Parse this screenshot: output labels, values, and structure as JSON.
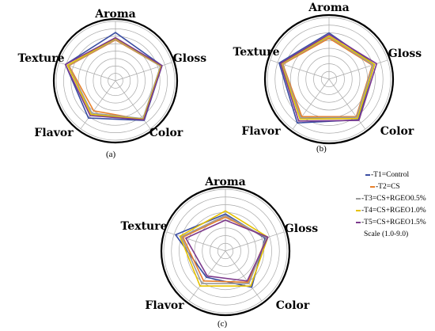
{
  "colors": {
    "T1": "#3b4ea3",
    "T2": "#e8802a",
    "T3": "#9a9a9a",
    "T4": "#e6c200",
    "T5": "#7d3a8c",
    "grid": "#a8a8a8",
    "outer": "#000000"
  },
  "legend": {
    "items": [
      {
        "key": "T1",
        "label": "T1=Control"
      },
      {
        "key": "T2",
        "label": "T2=CS"
      },
      {
        "key": "T3",
        "label": "T3=CS+RGEO0.5%"
      },
      {
        "key": "T4",
        "label": "T4=CS+RGEO1.0%"
      },
      {
        "key": "T5",
        "label": "T5=CS+RGEO1.5%"
      }
    ],
    "scale": "Scale (1.0-9.0)"
  },
  "chart_data": [
    {
      "type": "radar",
      "panel": "(a)",
      "axes": [
        "Aroma",
        "Gloss",
        "Color",
        "Flavor",
        "Texture"
      ],
      "range": [
        1,
        9
      ],
      "grid": true,
      "series": [
        {
          "key": "T1",
          "values": [
            7.5,
            7.6,
            7.6,
            7.2,
            8.1
          ]
        },
        {
          "key": "T2",
          "values": [
            6.5,
            7.4,
            7.5,
            6.0,
            7.6
          ]
        },
        {
          "key": "T3",
          "values": [
            6.6,
            7.4,
            7.3,
            6.4,
            7.7
          ]
        },
        {
          "key": "T4",
          "values": [
            6.7,
            7.5,
            7.4,
            6.6,
            7.8
          ]
        },
        {
          "key": "T5",
          "values": [
            6.8,
            7.6,
            7.5,
            6.8,
            8.1
          ]
        }
      ]
    },
    {
      "type": "radar",
      "panel": "(b)",
      "axes": [
        "Aroma",
        "Gloss",
        "Color",
        "Flavor",
        "Texture"
      ],
      "range": [
        1,
        9
      ],
      "grid": true,
      "series": [
        {
          "key": "T1",
          "values": [
            7.0,
            7.2,
            7.5,
            8.0,
            7.8
          ]
        },
        {
          "key": "T2",
          "values": [
            6.3,
            6.9,
            7.0,
            7.0,
            7.3
          ]
        },
        {
          "key": "T3",
          "values": [
            6.5,
            7.0,
            7.1,
            7.2,
            7.4
          ]
        },
        {
          "key": "T4",
          "values": [
            6.6,
            7.2,
            7.3,
            7.4,
            7.5
          ]
        },
        {
          "key": "T5",
          "values": [
            6.8,
            7.5,
            7.6,
            7.7,
            7.6
          ]
        }
      ]
    },
    {
      "type": "radar",
      "panel": "(c)",
      "axes": [
        "Aroma",
        "Gloss",
        "Color",
        "Flavor",
        "Texture"
      ],
      "range": [
        1,
        9
      ],
      "grid": true,
      "series": [
        {
          "key": "T1",
          "values": [
            5.8,
            6.4,
            6.8,
            5.2,
            7.8
          ]
        },
        {
          "key": "T2",
          "values": [
            5.4,
            6.6,
            6.0,
            5.8,
            6.8
          ]
        },
        {
          "key": "T3",
          "values": [
            5.6,
            6.6,
            6.2,
            6.2,
            7.0
          ]
        },
        {
          "key": "T4",
          "values": [
            6.2,
            6.8,
            6.6,
            6.6,
            7.2
          ]
        },
        {
          "key": "T5",
          "values": [
            5.0,
            6.8,
            5.8,
            5.0,
            6.4
          ]
        }
      ]
    }
  ]
}
